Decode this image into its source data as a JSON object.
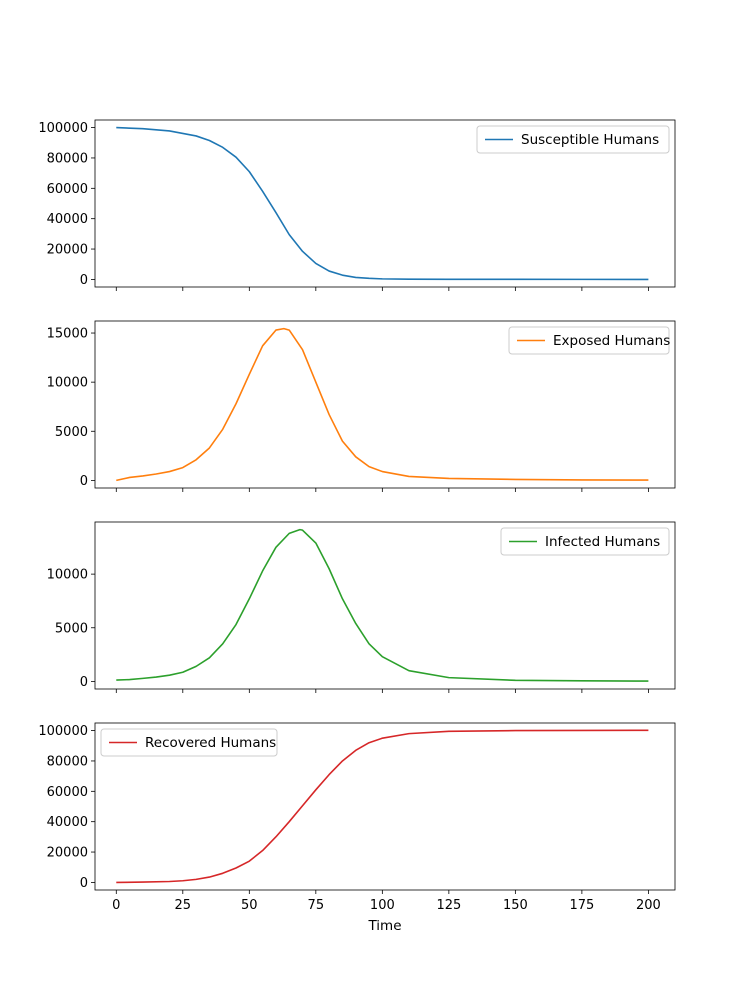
{
  "chart_data": [
    {
      "type": "line",
      "series": [
        {
          "name": "Susceptible Humans",
          "color": "#1f77b4",
          "x": [
            0,
            10,
            20,
            30,
            35,
            40,
            45,
            50,
            55,
            60,
            65,
            70,
            75,
            80,
            85,
            90,
            95,
            100,
            110,
            125,
            150,
            175,
            200
          ],
          "values": [
            100000,
            99300,
            97800,
            94500,
            91500,
            87000,
            80500,
            71000,
            58000,
            44000,
            29500,
            18500,
            10500,
            5500,
            2800,
            1300,
            700,
            350,
            150,
            70,
            30,
            20,
            15
          ]
        }
      ],
      "xlim": [
        -8,
        210
      ],
      "ylim": [
        -5000,
        105000
      ],
      "yticks": [
        0,
        20000,
        40000,
        60000,
        80000,
        100000
      ],
      "legend": "top-right"
    },
    {
      "type": "line",
      "series": [
        {
          "name": "Exposed Humans",
          "color": "#ff7f0e",
          "x": [
            0,
            5,
            10,
            15,
            20,
            25,
            30,
            35,
            40,
            45,
            50,
            55,
            60,
            63,
            65,
            70,
            75,
            80,
            85,
            90,
            95,
            100,
            110,
            125,
            150,
            175,
            200
          ],
          "values": [
            0,
            300,
            450,
            650,
            900,
            1300,
            2100,
            3300,
            5200,
            7800,
            10800,
            13700,
            15300,
            15450,
            15300,
            13300,
            10000,
            6700,
            4000,
            2400,
            1400,
            900,
            400,
            200,
            100,
            50,
            30
          ]
        }
      ],
      "xlim": [
        -8,
        210
      ],
      "ylim": [
        -775,
        16225
      ],
      "yticks": [
        0,
        5000,
        10000,
        15000
      ],
      "legend": "top-right"
    },
    {
      "type": "line",
      "series": [
        {
          "name": "Infected Humans",
          "color": "#2ca02c",
          "x": [
            0,
            5,
            10,
            15,
            20,
            25,
            30,
            35,
            40,
            45,
            50,
            55,
            60,
            65,
            69,
            70,
            75,
            80,
            85,
            90,
            95,
            100,
            110,
            125,
            150,
            175,
            200
          ],
          "values": [
            120,
            170,
            280,
            400,
            580,
            850,
            1400,
            2200,
            3500,
            5300,
            7700,
            10300,
            12500,
            13800,
            14150,
            14100,
            12900,
            10500,
            7700,
            5400,
            3500,
            2300,
            1000,
            350,
            100,
            50,
            30
          ]
        }
      ],
      "xlim": [
        -8,
        210
      ],
      "ylim": [
        -710,
        14860
      ],
      "yticks": [
        0,
        5000,
        10000
      ],
      "legend": "top-right"
    },
    {
      "type": "line",
      "series": [
        {
          "name": "Recovered Humans",
          "color": "#d62728",
          "x": [
            0,
            10,
            20,
            25,
            30,
            35,
            40,
            45,
            50,
            55,
            60,
            65,
            70,
            75,
            80,
            85,
            90,
            95,
            100,
            110,
            125,
            150,
            175,
            200
          ],
          "values": [
            0,
            200,
            600,
            1100,
            2000,
            3500,
            6000,
            9500,
            14000,
            21000,
            30000,
            40000,
            50500,
            61000,
            71000,
            80000,
            87000,
            92000,
            95000,
            98000,
            99500,
            100000,
            100100,
            100200
          ]
        }
      ],
      "xlim": [
        -8,
        210
      ],
      "ylim": [
        -5000,
        105000
      ],
      "yticks": [
        0,
        20000,
        40000,
        60000,
        80000,
        100000
      ],
      "xticks": [
        0,
        25,
        50,
        75,
        100,
        125,
        150,
        175,
        200
      ],
      "xlabel": "Time",
      "legend": "top-left"
    }
  ]
}
